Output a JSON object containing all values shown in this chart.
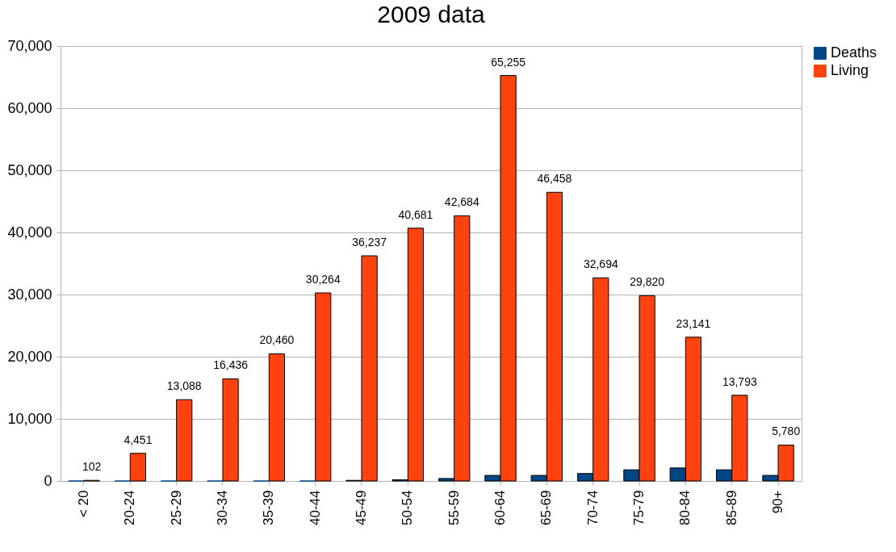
{
  "chart_data": {
    "type": "bar",
    "title": "2009 data",
    "categories": [
      "< 20",
      "20-24",
      "25-29",
      "30-34",
      "35-39",
      "40-44",
      "45-49",
      "50-54",
      "55-59",
      "60-64",
      "65-69",
      "70-74",
      "75-79",
      "80-84",
      "85-89",
      "90+"
    ],
    "series": [
      {
        "name": "Deaths",
        "color": "#004586",
        "values": [
          0,
          0,
          0,
          0,
          0,
          0,
          100,
          200,
          400,
          900,
          900,
          1200,
          1800,
          2100,
          1800,
          900
        ]
      },
      {
        "name": "Living",
        "color": "#ff420e",
        "values": [
          102,
          4451,
          13088,
          16436,
          20460,
          30264,
          36237,
          40681,
          42684,
          65255,
          46458,
          32694,
          29820,
          23141,
          13793,
          5780
        ],
        "value_labels": [
          "102",
          "4,451",
          "13,088",
          "16,436",
          "20,460",
          "30,264",
          "36,237",
          "40,681",
          "42,684",
          "65,255",
          "46,458",
          "32,694",
          "29,820",
          "23,141",
          "13,793",
          "5,780"
        ]
      }
    ],
    "ylim": [
      0,
      70000
    ],
    "yticks": [
      {
        "value": 0,
        "label": "0"
      },
      {
        "value": 10000,
        "label": "10,000"
      },
      {
        "value": 20000,
        "label": "20,000"
      },
      {
        "value": 30000,
        "label": "30,000"
      },
      {
        "value": 40000,
        "label": "40,000"
      },
      {
        "value": 50000,
        "label": "50,000"
      },
      {
        "value": 60000,
        "label": "60,000"
      },
      {
        "value": 70000,
        "label": "70,000"
      }
    ],
    "grid": "y",
    "legend": "right"
  }
}
